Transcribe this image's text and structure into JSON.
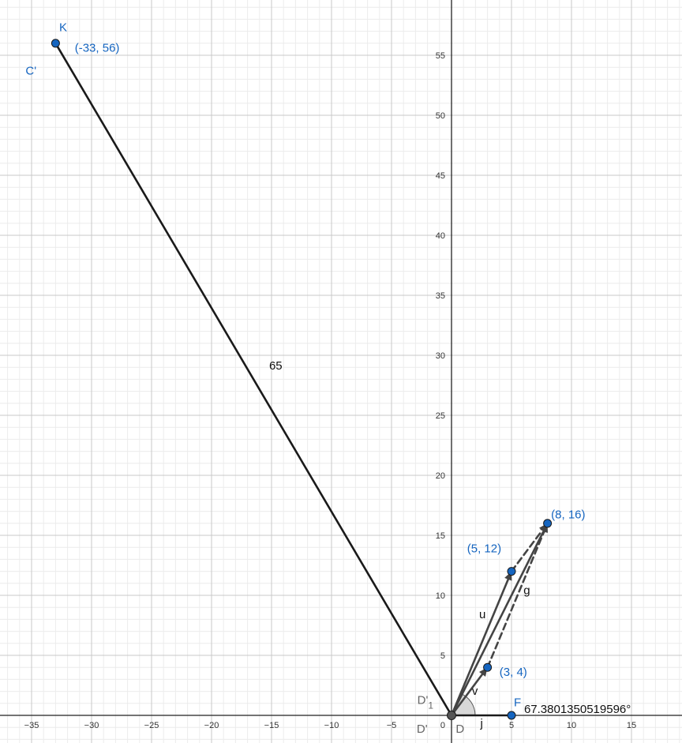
{
  "colors": {
    "point_fill": "#1565c0",
    "point_label": "#1565c0",
    "segment": "#1a1a1a",
    "vector": "#444444",
    "hidden_label": "#666666",
    "major_grid": "#c8c8c8",
    "minor_grid": "#ececec",
    "axis": "#222222"
  },
  "chart_data": {
    "type": "scatter",
    "title": "",
    "xlabel": "",
    "ylabel": "",
    "xlim": [
      -37.5,
      19
    ],
    "ylim": [
      -2,
      59
    ],
    "grid": true,
    "x_ticks": [
      -35,
      -30,
      -25,
      -20,
      -15,
      -10,
      -5,
      5,
      10,
      15
    ],
    "y_ticks": [
      5,
      10,
      15,
      20,
      25,
      30,
      35,
      40,
      45,
      50,
      55
    ],
    "origin_label": "0",
    "points": [
      {
        "id": "K",
        "x": -33,
        "y": 56,
        "name": "K",
        "coord_label": "(-33, 56)",
        "extra_label": "C'"
      },
      {
        "id": "P512",
        "x": 5,
        "y": 12,
        "name": "",
        "coord_label": "(5, 12)"
      },
      {
        "id": "P816",
        "x": 8,
        "y": 16,
        "name": "",
        "coord_label": "(8, 16)"
      },
      {
        "id": "P34",
        "x": 3,
        "y": 4,
        "name": "",
        "coord_label": "(3, 4)"
      },
      {
        "id": "F",
        "x": 5,
        "y": 0,
        "name": "F",
        "coord_label": ""
      },
      {
        "id": "D",
        "x": 0,
        "y": 0,
        "name": "D",
        "coord_label": "",
        "extra_label": "D'",
        "sub_label_main": "D'",
        "sub_label_index": "1"
      }
    ],
    "segments": [
      {
        "id": "DK",
        "from": [
          0,
          0
        ],
        "to": [
          -33,
          56
        ],
        "label": "65"
      },
      {
        "id": "DF",
        "from": [
          0,
          0
        ],
        "to": [
          5,
          0
        ],
        "label": "j"
      }
    ],
    "vectors": [
      {
        "id": "u",
        "from": [
          0,
          0
        ],
        "to": [
          5,
          12
        ],
        "label": "u",
        "dashed": false
      },
      {
        "id": "v",
        "from": [
          0,
          0
        ],
        "to": [
          3,
          4
        ],
        "label": "v",
        "dashed": false
      },
      {
        "id": "g",
        "from": [
          0,
          0
        ],
        "to": [
          8,
          16
        ],
        "label": "g",
        "dashed": false
      },
      {
        "id": "d1",
        "from": [
          3,
          4
        ],
        "to": [
          8,
          16
        ],
        "label": "",
        "dashed": true
      },
      {
        "id": "d2",
        "from": [
          5,
          12
        ],
        "to": [
          8,
          16
        ],
        "label": "",
        "dashed": true
      }
    ],
    "angle": {
      "vertex": [
        0,
        0
      ],
      "from_deg": 0,
      "to_deg": 67.3801350519596,
      "label": "67.3801350519596°"
    }
  }
}
